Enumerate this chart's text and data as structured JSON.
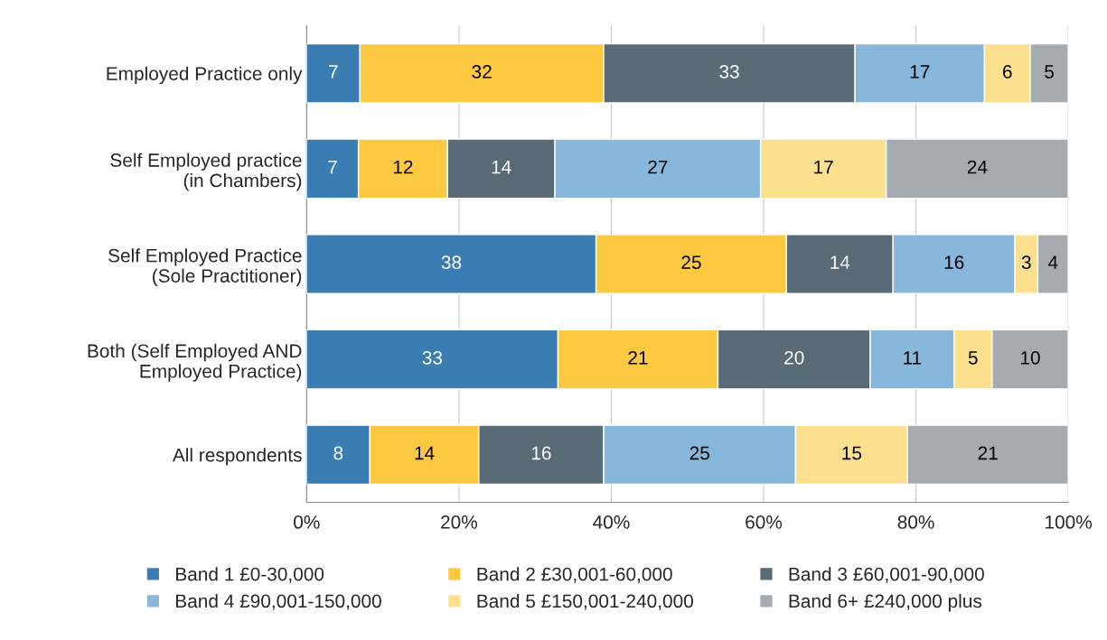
{
  "chart_data": {
    "type": "bar",
    "orientation": "horizontal",
    "stacked": true,
    "categories": [
      "Employed Practice only",
      "Self Employed practice\n(in Chambers)",
      "Self Employed Practice\n(Sole Practitioner)",
      "Both (Self Employed AND\nEmployed Practice)",
      "All respondents"
    ],
    "series": [
      {
        "name": "Band 1 £0-30,000",
        "color": "#3a7db3",
        "values": [
          7,
          6.8,
          38,
          33,
          8.3
        ],
        "value_labels": [
          "7",
          "7",
          "38",
          "33",
          "8"
        ]
      },
      {
        "name": "Band 2 £30,001-60,000",
        "color": "#fdc941",
        "values": [
          32,
          11.7,
          25,
          21,
          14.3
        ],
        "value_labels": [
          "32",
          "12",
          "25",
          "21",
          "14"
        ]
      },
      {
        "name": "Band 3 £60,001-90,000",
        "color": "#5a6b78",
        "values": [
          33,
          14.1,
          14,
          20,
          16.4
        ],
        "value_labels": [
          "33",
          "14",
          "14",
          "20",
          "16"
        ]
      },
      {
        "name": "Band 4 £90,001-150,000",
        "color": "#88b7dc",
        "values": [
          17,
          27.0,
          16,
          11,
          25.2
        ],
        "value_labels": [
          "17",
          "27",
          "16",
          "11",
          "25"
        ]
      },
      {
        "name": "Band 5 £150,001-240,000",
        "color": "#fde08e",
        "values": [
          6,
          16.5,
          3,
          5,
          14.7
        ],
        "value_labels": [
          "6",
          "17",
          "3",
          "5",
          "15"
        ]
      },
      {
        "name": "Band 6+ £240,000 plus",
        "color": "#a6abb0",
        "values": [
          5,
          23.9,
          4,
          10,
          21.1
        ],
        "value_labels": [
          "5",
          "24",
          "4",
          "10",
          "21"
        ]
      }
    ],
    "xlim": [
      0,
      100
    ],
    "xticks": [
      {
        "value": 0,
        "label": "0%"
      },
      {
        "value": 20,
        "label": "20%"
      },
      {
        "value": 40,
        "label": "40%"
      },
      {
        "value": 60,
        "label": "60%"
      },
      {
        "value": 80,
        "label": "80%"
      },
      {
        "value": 100,
        "label": "100%"
      }
    ],
    "grid": "x",
    "legend": "bottom"
  }
}
